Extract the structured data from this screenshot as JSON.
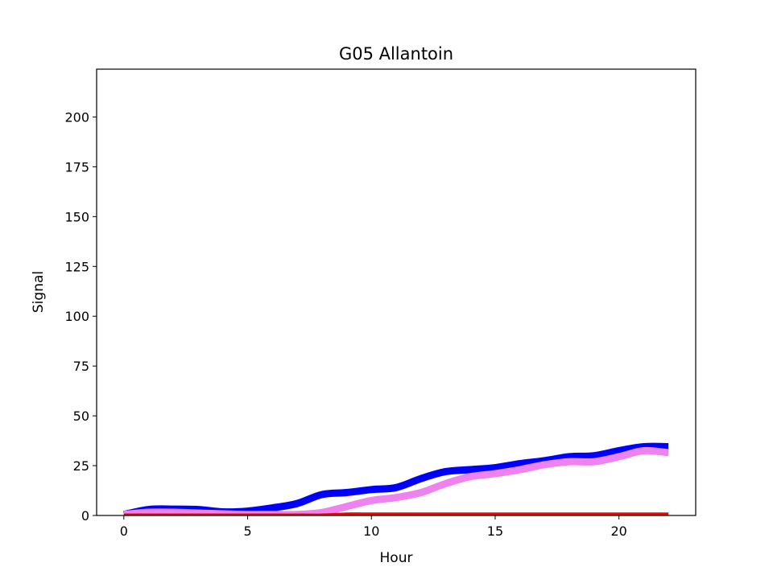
{
  "chart_data": {
    "type": "line",
    "title": "G05 Allantoin",
    "xlabel": "Hour",
    "ylabel": "Signal",
    "xlim": [
      -1.1,
      23.1
    ],
    "ylim": [
      0,
      224
    ],
    "xticks": [
      0,
      5,
      10,
      15,
      20
    ],
    "yticks": [
      0,
      25,
      50,
      75,
      100,
      125,
      150,
      175,
      200
    ],
    "grid": false,
    "legend": "none",
    "x": [
      0,
      1,
      2,
      3,
      4,
      5,
      6,
      7,
      8,
      9,
      10,
      11,
      12,
      13,
      14,
      15,
      16,
      17,
      18,
      19,
      20,
      21,
      22
    ],
    "series": [
      {
        "color": "#0000ff",
        "values": [
          0.5,
          3,
          3.2,
          3,
          1.8,
          2.2,
          3.8,
          6,
          10.5,
          11.5,
          13,
          14,
          18.5,
          22,
          23,
          24,
          26,
          27.5,
          29.5,
          30,
          32.5,
          34.5,
          34.5
        ]
      },
      {
        "color": "#ee82ee",
        "values": [
          0.5,
          1.6,
          1.6,
          1.2,
          0.8,
          0.5,
          0.5,
          0.5,
          1.5,
          4.5,
          7.5,
          9,
          11.5,
          16,
          19.5,
          21,
          23,
          25.5,
          27,
          27,
          29.5,
          32.5,
          31.5
        ]
      },
      {
        "color": "#ff0000",
        "values": [
          0,
          0,
          0,
          0,
          0,
          0,
          0,
          0,
          0,
          0.5,
          0.5,
          0.5,
          0.5,
          0.5,
          0.5,
          0.5,
          0.5,
          0.5,
          0.5,
          0.5,
          0.5,
          0.5,
          0.5
        ]
      }
    ]
  }
}
